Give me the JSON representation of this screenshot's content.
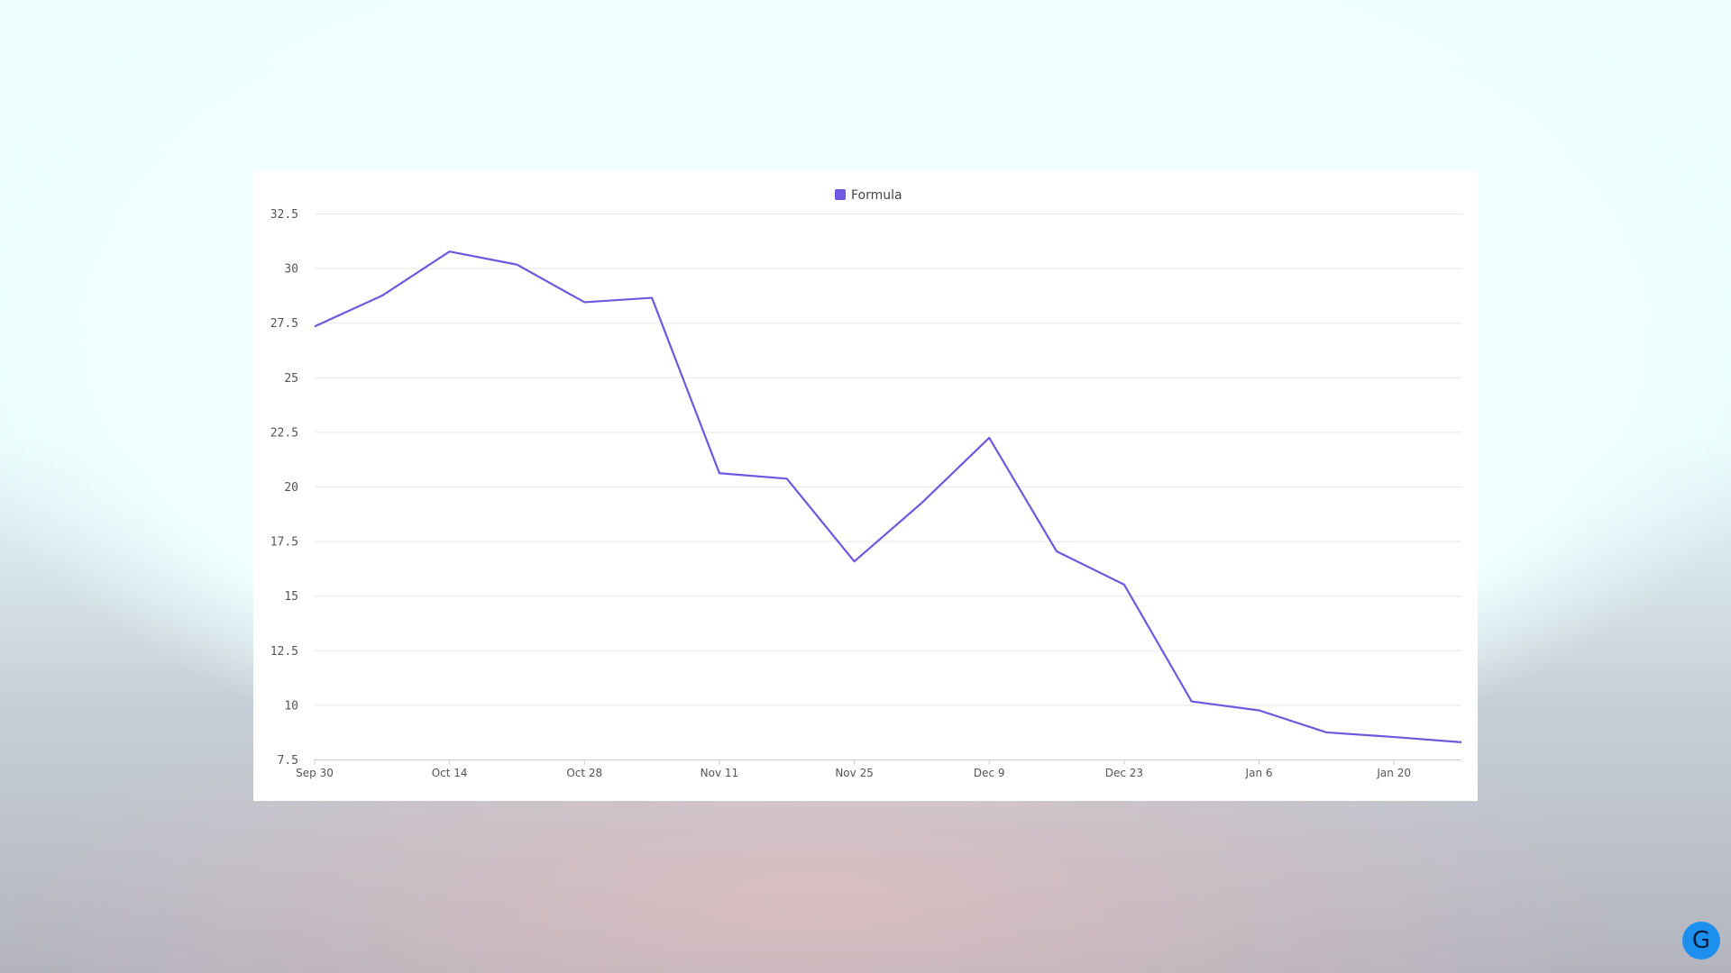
{
  "chart_data": {
    "type": "line",
    "categories": [
      "Sep 30",
      null,
      "Oct 14",
      null,
      "Oct 28",
      null,
      "Nov 11",
      null,
      "Nov 25",
      null,
      "Dec 9",
      null,
      "Dec 23",
      null,
      "Jan 6",
      null,
      "Jan 20",
      null
    ],
    "series": [
      {
        "name": "Formula",
        "color": "#7057e0",
        "values": [
          27.35,
          28.76,
          30.78,
          30.18,
          28.46,
          28.66,
          20.63,
          20.38,
          16.59,
          19.27,
          22.25,
          17.05,
          15.53,
          10.18,
          9.77,
          8.76,
          8.55,
          8.31
        ]
      }
    ],
    "ylim": [
      7.5,
      32.5
    ],
    "yticks": [
      7.5,
      10,
      12.5,
      15,
      17.5,
      20,
      22.5,
      25,
      27.5,
      30,
      32.5
    ],
    "grid": true,
    "legend": "top"
  },
  "assistant_button": "G"
}
